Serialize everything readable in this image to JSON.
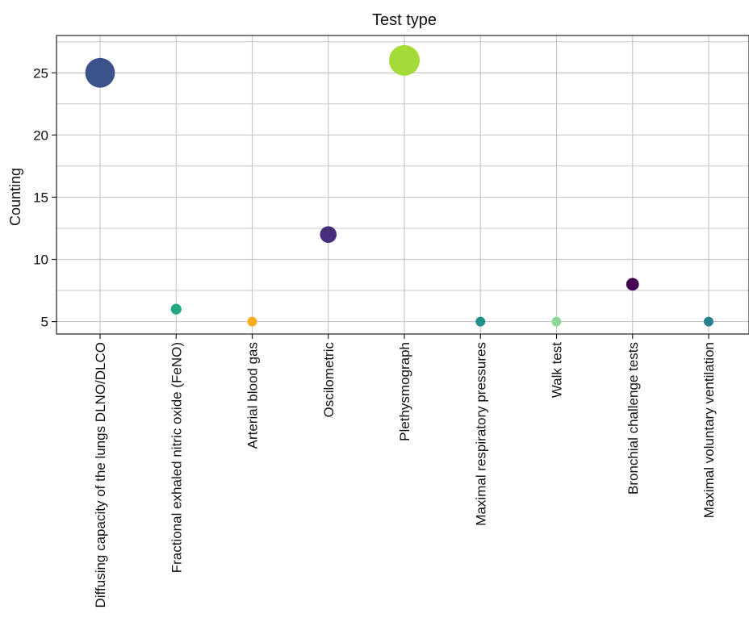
{
  "chart_data": {
    "type": "scatter",
    "title": "Test type",
    "xlabel": "",
    "ylabel": "Counting",
    "ylim": [
      4,
      28
    ],
    "yticks": [
      5,
      10,
      15,
      20,
      25
    ],
    "grid": true,
    "legend": "none",
    "size_encoding": "counting",
    "categories": [
      "Diffusing capacity of the lungs DLNO/DLCO",
      "Fractional exhaled nitric oxide (FeNO)",
      "Arterial blood gas",
      "Oscilometric",
      "Plethysmograph",
      "Maximal respiratory pressures",
      "Walk test",
      "Bronchial challenge tests",
      "Maximal voluntary ventilation"
    ],
    "values": [
      25,
      6,
      5,
      12,
      26,
      5,
      5,
      8,
      5
    ],
    "colors": [
      "#3b528b",
      "#22a884",
      "#fdae20",
      "#472d7b",
      "#a5db36",
      "#21918c",
      "#8fd49b",
      "#440154",
      "#26828e"
    ]
  }
}
